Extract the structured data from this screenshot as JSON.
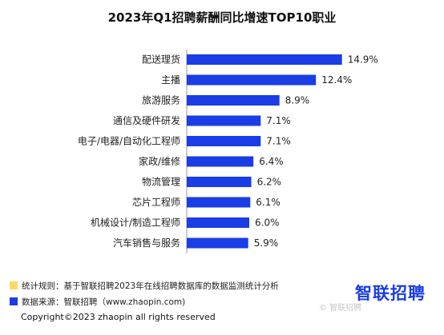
{
  "title": "2023年Q1招聘薪酬同比增速TOP10职业",
  "chart_data": {
    "type": "bar",
    "orientation": "horizontal",
    "title": "2023年Q1招聘薪酬同比增速TOP10职业",
    "categories": [
      "配送理货",
      "主播",
      "旅游服务",
      "通信及硬件研发",
      "电子/电器/自动化工程师",
      "家政/维修",
      "物流管理",
      "芯片工程师",
      "机械设计/制造工程师",
      "汽车销售与服务"
    ],
    "values": [
      14.9,
      12.4,
      8.9,
      7.1,
      7.1,
      6.4,
      6.2,
      6.1,
      6.0,
      5.9
    ],
    "value_labels": [
      "14.9%",
      "12.4%",
      "8.9%",
      "7.1%",
      "7.1%",
      "6.4%",
      "6.2%",
      "6.1%",
      "6.0%",
      "5.9%"
    ],
    "bar_color": "#1a3de6",
    "xlim": [
      0,
      15
    ],
    "grid": false,
    "xlabel": "",
    "ylabel": ""
  },
  "footnotes": {
    "rule_text": "统计规则：基于智联招聘2023年在线招聘数据库的数据监测统计分析",
    "rule_color": "#ffd966",
    "source_text": "数据来源：智联招聘（www.zhaopin.com)",
    "source_color": "#1a3de6"
  },
  "logo_text": "智联招聘",
  "watermark_text": "© 智联招聘",
  "copyright": "Copyright©2023 zhaopin all rights reserved"
}
